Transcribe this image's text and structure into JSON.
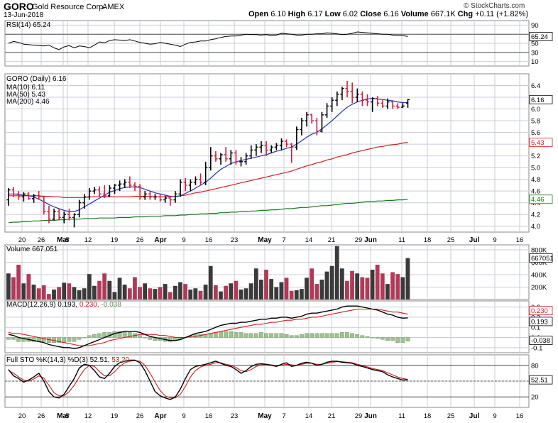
{
  "header": {
    "symbol": "GORO",
    "company": "Gold Resource Corp.",
    "exchange": "AMEX",
    "date": "13-Jun-2018",
    "open_label": "Open",
    "open": "6.10",
    "high_label": "High",
    "high": "6.17",
    "low_label": "Low",
    "low": "6.02",
    "close_label": "Close",
    "close": "6.16",
    "volume_label": "Volume",
    "volume": "667.1K",
    "chg_label": "Chg",
    "chg": "+0.11 (+1.82%)",
    "brand": "© StockCharts.com"
  },
  "colors": {
    "up_bar": "#000000",
    "down_bar": "#d21e3c",
    "ma10": "#2236a0",
    "ma50": "#d21e1e",
    "ma200": "#1a7a1a",
    "vol_up": "#3a3a3a",
    "vol_down": "#b03a58",
    "grid": "#c8cdd8",
    "panel_border": "#888888",
    "tag_bg": "#ffffff"
  },
  "chart_data": {
    "type": "ohlc",
    "x_ticks": [
      "20",
      "26",
      "Mar",
      "5",
      "12",
      "19",
      "26",
      "Apr",
      "9",
      "16",
      "23",
      "May",
      "7",
      "14",
      "21",
      "29",
      "Jun",
      "11",
      "18",
      "25",
      "Jul",
      "9",
      "16"
    ],
    "x_ticks_bold": [
      "Mar",
      "Apr",
      "May",
      "Jun",
      "Jul"
    ],
    "legend": {
      "rsi": "RSI(14) 65.24",
      "price": "GORO (Daily) 6.16",
      "ma10": "MA(10) 6.11",
      "ma50": "MA(50) 5.43",
      "ma200": "MA(200) 4.46",
      "volume": "Volume 667,051",
      "macd_prefix": "MACD(12,26,9) 0.193,",
      "macd_signal": "0.230,",
      "macd_hist": "-0.038",
      "sto_prefix": "Full STO %K(14,3) %D(3) 52.51,",
      "sto_d": "53.20"
    },
    "rsi": {
      "ylim": [
        0,
        100
      ],
      "ticks": [
        90,
        70,
        50,
        30,
        10
      ],
      "levels": [
        70,
        30
      ],
      "last_tag": "65.24",
      "values": [
        50,
        54,
        52,
        48,
        47,
        46,
        45,
        44,
        46,
        40,
        36,
        42,
        45,
        40,
        44,
        43,
        40,
        46,
        53,
        51,
        56,
        58,
        57,
        56,
        58,
        55,
        52,
        50,
        48,
        49,
        52,
        50,
        48,
        46,
        43,
        48,
        52,
        53,
        55,
        55,
        58,
        60,
        63,
        65,
        66,
        66,
        68,
        70,
        69,
        69,
        68,
        69,
        67,
        68,
        72,
        71,
        70,
        68,
        68,
        70,
        70,
        71,
        71,
        73,
        72,
        71,
        69,
        70,
        72,
        75,
        74,
        73,
        72,
        71,
        70,
        70,
        68,
        67,
        67,
        65
      ]
    },
    "price": {
      "ylim": [
        3.9,
        6.6
      ],
      "ticks": [
        6.4,
        6.2,
        6.0,
        5.8,
        5.6,
        5.4,
        5.2,
        5.0,
        4.8,
        4.6,
        4.4,
        4.2,
        4.0
      ],
      "tags": {
        "close": "6.16",
        "ma50": "5.43",
        "ma200": "4.46"
      },
      "bars": [
        [
          4.45,
          4.65,
          4.35,
          4.62
        ],
        [
          4.62,
          4.67,
          4.5,
          4.55
        ],
        [
          4.55,
          4.6,
          4.45,
          4.5
        ],
        [
          4.5,
          4.58,
          4.42,
          4.55
        ],
        [
          4.55,
          4.58,
          4.45,
          4.47
        ],
        [
          4.47,
          4.55,
          4.4,
          4.52
        ],
        [
          4.52,
          4.6,
          4.45,
          4.5
        ],
        [
          4.5,
          4.52,
          4.2,
          4.25
        ],
        [
          4.25,
          4.35,
          4.05,
          4.12
        ],
        [
          4.12,
          4.3,
          4.1,
          4.25
        ],
        [
          4.25,
          4.3,
          4.1,
          4.15
        ],
        [
          4.15,
          4.25,
          4.05,
          4.2
        ],
        [
          4.2,
          4.3,
          4.1,
          4.15
        ],
        [
          4.15,
          4.22,
          3.98,
          4.2
        ],
        [
          4.2,
          4.45,
          4.15,
          4.4
        ],
        [
          4.4,
          4.55,
          4.3,
          4.5
        ],
        [
          4.5,
          4.65,
          4.45,
          4.6
        ],
        [
          4.6,
          4.67,
          4.55,
          4.62
        ],
        [
          4.62,
          4.68,
          4.5,
          4.55
        ],
        [
          4.55,
          4.7,
          4.48,
          4.52
        ],
        [
          4.52,
          4.7,
          4.5,
          4.65
        ],
        [
          4.65,
          4.72,
          4.55,
          4.7
        ],
        [
          4.7,
          4.78,
          4.6,
          4.72
        ],
        [
          4.72,
          4.8,
          4.65,
          4.75
        ],
        [
          4.75,
          4.85,
          4.65,
          4.7
        ],
        [
          4.7,
          4.75,
          4.6,
          4.68
        ],
        [
          4.68,
          4.72,
          4.45,
          4.5
        ],
        [
          4.5,
          4.6,
          4.45,
          4.55
        ],
        [
          4.55,
          4.6,
          4.45,
          4.5
        ],
        [
          4.5,
          4.55,
          4.45,
          4.5
        ],
        [
          4.5,
          4.55,
          4.42,
          4.45
        ],
        [
          4.45,
          4.52,
          4.4,
          4.48
        ],
        [
          4.48,
          4.52,
          4.35,
          4.45
        ],
        [
          4.45,
          4.6,
          4.4,
          4.55
        ],
        [
          4.55,
          4.8,
          4.5,
          4.75
        ],
        [
          4.75,
          4.82,
          4.6,
          4.7
        ],
        [
          4.7,
          4.8,
          4.6,
          4.75
        ],
        [
          4.75,
          4.85,
          4.7,
          4.8
        ],
        [
          4.8,
          4.9,
          4.7,
          4.75
        ],
        [
          4.75,
          5.1,
          4.7,
          5.0
        ],
        [
          5.0,
          5.35,
          4.95,
          5.2
        ],
        [
          5.2,
          5.28,
          5.1,
          5.15
        ],
        [
          5.15,
          5.25,
          5.05,
          5.22
        ],
        [
          5.22,
          5.35,
          5.1,
          5.15
        ],
        [
          5.15,
          5.3,
          5.05,
          5.25
        ],
        [
          5.25,
          5.3,
          5.05,
          5.1
        ],
        [
          5.1,
          5.18,
          5.02,
          5.1
        ],
        [
          5.1,
          5.25,
          5.05,
          5.2
        ],
        [
          5.2,
          5.38,
          5.15,
          5.3
        ],
        [
          5.3,
          5.4,
          5.2,
          5.35
        ],
        [
          5.35,
          5.45,
          5.25,
          5.38
        ],
        [
          5.38,
          5.45,
          5.2,
          5.3
        ],
        [
          5.3,
          5.38,
          5.25,
          5.35
        ],
        [
          5.35,
          5.42,
          5.3,
          5.38
        ],
        [
          5.38,
          5.5,
          5.3,
          5.45
        ],
        [
          5.45,
          5.48,
          5.35,
          5.4
        ],
        [
          5.4,
          5.42,
          5.08,
          5.35
        ],
        [
          5.35,
          5.7,
          5.3,
          5.65
        ],
        [
          5.65,
          5.85,
          5.55,
          5.8
        ],
        [
          5.8,
          5.95,
          5.7,
          5.9
        ],
        [
          5.9,
          5.92,
          5.75,
          5.8
        ],
        [
          5.8,
          5.85,
          5.55,
          5.62
        ],
        [
          5.62,
          5.95,
          5.6,
          5.9
        ],
        [
          5.9,
          6.1,
          5.85,
          6.05
        ],
        [
          6.05,
          6.2,
          5.95,
          6.15
        ],
        [
          6.15,
          6.3,
          6.05,
          6.25
        ],
        [
          6.25,
          6.38,
          6.15,
          6.35
        ],
        [
          6.35,
          6.48,
          6.2,
          6.3
        ],
        [
          6.3,
          6.45,
          6.1,
          6.2
        ],
        [
          6.2,
          6.35,
          6.12,
          6.25
        ],
        [
          6.25,
          6.3,
          6.05,
          6.15
        ],
        [
          6.15,
          6.25,
          6.05,
          6.12
        ],
        [
          6.12,
          6.2,
          5.95,
          6.18
        ],
        [
          6.18,
          6.22,
          6.05,
          6.1
        ],
        [
          6.1,
          6.15,
          6.02,
          6.05
        ],
        [
          6.05,
          6.18,
          6.0,
          6.12
        ],
        [
          6.12,
          6.14,
          6.0,
          6.05
        ],
        [
          6.05,
          6.1,
          6.0,
          6.03
        ],
        [
          6.03,
          6.1,
          6.02,
          6.05
        ],
        [
          6.1,
          6.17,
          6.02,
          6.16
        ]
      ],
      "ma10": [
        4.55,
        4.55,
        4.54,
        4.53,
        4.52,
        4.5,
        4.46,
        4.42,
        4.37,
        4.33,
        4.3,
        4.27,
        4.25,
        4.25,
        4.28,
        4.33,
        4.38,
        4.43,
        4.48,
        4.53,
        4.58,
        4.61,
        4.64,
        4.66,
        4.67,
        4.67,
        4.66,
        4.63,
        4.6,
        4.57,
        4.55,
        4.53,
        4.51,
        4.5,
        4.52,
        4.56,
        4.6,
        4.65,
        4.7,
        4.75,
        4.82,
        4.9,
        4.97,
        5.02,
        5.07,
        5.1,
        5.12,
        5.14,
        5.16,
        5.18,
        5.2,
        5.22,
        5.25,
        5.28,
        5.3,
        5.33,
        5.35,
        5.4,
        5.46,
        5.52,
        5.57,
        5.6,
        5.66,
        5.73,
        5.8,
        5.88,
        5.96,
        6.03,
        6.08,
        6.12,
        6.15,
        6.17,
        6.18,
        6.17,
        6.16,
        6.15,
        6.14,
        6.12,
        6.11,
        6.11
      ],
      "ma50": [
        4.52,
        4.52,
        4.52,
        4.52,
        4.52,
        4.52,
        4.52,
        4.51,
        4.51,
        4.5,
        4.5,
        4.49,
        4.49,
        4.49,
        4.49,
        4.49,
        4.5,
        4.5,
        4.5,
        4.5,
        4.5,
        4.5,
        4.5,
        4.5,
        4.5,
        4.51,
        4.51,
        4.51,
        4.51,
        4.5,
        4.5,
        4.5,
        4.5,
        4.51,
        4.52,
        4.53,
        4.55,
        4.57,
        4.58,
        4.6,
        4.62,
        4.64,
        4.66,
        4.68,
        4.7,
        4.72,
        4.74,
        4.76,
        4.78,
        4.8,
        4.82,
        4.84,
        4.86,
        4.88,
        4.9,
        4.92,
        4.94,
        4.97,
        5.0,
        5.03,
        5.05,
        5.08,
        5.1,
        5.13,
        5.15,
        5.18,
        5.2,
        5.22,
        5.25,
        5.27,
        5.29,
        5.31,
        5.33,
        5.35,
        5.36,
        5.38,
        5.39,
        5.4,
        5.42,
        5.43
      ],
      "ma200": [
        4.06,
        4.07,
        4.07,
        4.08,
        4.08,
        4.09,
        4.09,
        4.1,
        4.1,
        4.1,
        4.11,
        4.11,
        4.12,
        4.12,
        4.12,
        4.13,
        4.13,
        4.13,
        4.14,
        4.14,
        4.14,
        4.14,
        4.15,
        4.15,
        4.15,
        4.16,
        4.16,
        4.16,
        4.17,
        4.17,
        4.17,
        4.18,
        4.18,
        4.18,
        4.19,
        4.19,
        4.2,
        4.2,
        4.21,
        4.21,
        4.22,
        4.22,
        4.23,
        4.23,
        4.24,
        4.24,
        4.25,
        4.25,
        4.26,
        4.26,
        4.27,
        4.27,
        4.28,
        4.28,
        4.29,
        4.3,
        4.3,
        4.31,
        4.32,
        4.32,
        4.33,
        4.34,
        4.35,
        4.35,
        4.36,
        4.37,
        4.38,
        4.39,
        4.39,
        4.4,
        4.41,
        4.42,
        4.42,
        4.43,
        4.43,
        4.44,
        4.44,
        4.45,
        4.45,
        4.46
      ]
    },
    "volume": {
      "ylim": [
        0,
        880000
      ],
      "ticks": [
        "800K",
        "600K",
        "400K",
        "200K"
      ],
      "tick_values": [
        800000,
        600000,
        400000,
        200000
      ],
      "last_tag": "667051",
      "values": [
        420000,
        360000,
        560000,
        260000,
        410000,
        240000,
        180000,
        230000,
        90000,
        160000,
        200000,
        270000,
        260000,
        200000,
        150000,
        180000,
        410000,
        220000,
        300000,
        420000,
        300000,
        120000,
        350000,
        240000,
        180000,
        360000,
        200000,
        260000,
        180000,
        170000,
        200000,
        250000,
        120000,
        220000,
        280000,
        250000,
        160000,
        180000,
        140000,
        240000,
        540000,
        230000,
        130000,
        220000,
        260000,
        300000,
        160000,
        180000,
        260000,
        500000,
        320000,
        480000,
        330000,
        200000,
        280000,
        350000,
        140000,
        150000,
        170000,
        350000,
        500000,
        250000,
        320000,
        450000,
        540000,
        860000,
        500000,
        300000,
        460000,
        420000,
        360000,
        350000,
        480000,
        560000,
        420000,
        250000,
        440000,
        410000,
        360000,
        667051
      ]
    },
    "macd": {
      "ylim": [
        -0.15,
        0.36
      ],
      "ticks": [
        0.3,
        0.2,
        0.1,
        0.0,
        -0.1
      ],
      "tick_labels": [
        "0.3",
        "0.2",
        "0.1",
        "0.0",
        "-0.1"
      ],
      "tags": {
        "signal": "0.230",
        "macd": "0.193",
        "hist": "-0.038"
      },
      "macd": [
        0.03,
        0.02,
        0.0,
        -0.01,
        -0.02,
        -0.03,
        -0.04,
        -0.05,
        -0.07,
        -0.08,
        -0.09,
        -0.1,
        -0.1,
        -0.11,
        -0.1,
        -0.08,
        -0.06,
        -0.04,
        -0.02,
        0.0,
        0.02,
        0.04,
        0.05,
        0.06,
        0.06,
        0.06,
        0.05,
        0.03,
        0.01,
        0.0,
        -0.01,
        -0.02,
        -0.03,
        -0.03,
        -0.02,
        0.0,
        0.02,
        0.04,
        0.05,
        0.06,
        0.08,
        0.1,
        0.12,
        0.13,
        0.14,
        0.14,
        0.15,
        0.15,
        0.16,
        0.17,
        0.18,
        0.18,
        0.19,
        0.19,
        0.2,
        0.2,
        0.19,
        0.2,
        0.21,
        0.23,
        0.24,
        0.24,
        0.25,
        0.26,
        0.27,
        0.28,
        0.3,
        0.31,
        0.31,
        0.31,
        0.3,
        0.29,
        0.28,
        0.27,
        0.25,
        0.23,
        0.22,
        0.2,
        0.19,
        0.193
      ],
      "signal": [
        0.05,
        0.04,
        0.04,
        0.03,
        0.02,
        0.01,
        0.0,
        -0.01,
        -0.02,
        -0.03,
        -0.04,
        -0.05,
        -0.06,
        -0.07,
        -0.08,
        -0.08,
        -0.08,
        -0.07,
        -0.06,
        -0.05,
        -0.03,
        -0.02,
        -0.01,
        0.0,
        0.01,
        0.02,
        0.03,
        0.03,
        0.03,
        0.03,
        0.02,
        0.02,
        0.01,
        0.0,
        0.0,
        0.0,
        0.01,
        0.01,
        0.02,
        0.03,
        0.04,
        0.05,
        0.06,
        0.07,
        0.08,
        0.09,
        0.1,
        0.11,
        0.12,
        0.13,
        0.13,
        0.14,
        0.15,
        0.15,
        0.16,
        0.17,
        0.17,
        0.18,
        0.18,
        0.19,
        0.2,
        0.2,
        0.21,
        0.22,
        0.23,
        0.24,
        0.25,
        0.26,
        0.27,
        0.28,
        0.28,
        0.28,
        0.28,
        0.28,
        0.27,
        0.26,
        0.25,
        0.25,
        0.24,
        0.23
      ]
    },
    "sto": {
      "ylim": [
        0,
        100
      ],
      "ticks": [
        80,
        50,
        20
      ],
      "levels": [
        80,
        20
      ],
      "last_tag": "52.51",
      "k": [
        72,
        60,
        55,
        48,
        52,
        58,
        65,
        50,
        30,
        20,
        18,
        25,
        40,
        55,
        75,
        82,
        80,
        70,
        58,
        55,
        65,
        78,
        85,
        88,
        90,
        90,
        85,
        70,
        50,
        30,
        22,
        18,
        15,
        20,
        35,
        55,
        72,
        78,
        80,
        82,
        85,
        88,
        84,
        80,
        78,
        72,
        65,
        70,
        78,
        82,
        83,
        82,
        80,
        78,
        82,
        85,
        78,
        80,
        84,
        86,
        84,
        80,
        82,
        86,
        88,
        88,
        86,
        85,
        84,
        80,
        78,
        75,
        72,
        70,
        68,
        62,
        58,
        55,
        52,
        52.51
      ],
      "d": [
        70,
        65,
        58,
        52,
        50,
        54,
        60,
        56,
        42,
        28,
        22,
        22,
        30,
        42,
        58,
        72,
        80,
        78,
        68,
        60,
        60,
        68,
        78,
        85,
        88,
        89,
        88,
        80,
        65,
        48,
        32,
        22,
        18,
        18,
        25,
        40,
        58,
        70,
        77,
        80,
        82,
        85,
        85,
        82,
        80,
        76,
        70,
        68,
        72,
        78,
        81,
        82,
        81,
        79,
        80,
        82,
        81,
        80,
        82,
        84,
        84,
        82,
        82,
        84,
        86,
        87,
        87,
        86,
        85,
        82,
        80,
        77,
        74,
        72,
        70,
        66,
        62,
        58,
        55,
        53.2
      ]
    }
  }
}
